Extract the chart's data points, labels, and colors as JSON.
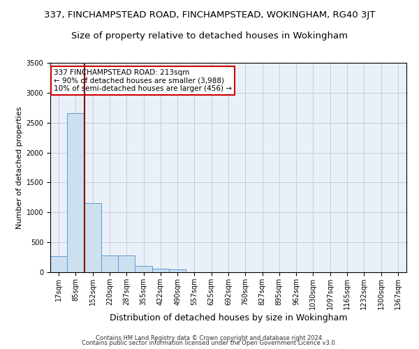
{
  "title1": "337, FINCHAMPSTEAD ROAD, FINCHAMPSTEAD, WOKINGHAM, RG40 3JT",
  "title2": "Size of property relative to detached houses in Wokingham",
  "xlabel": "Distribution of detached houses by size in Wokingham",
  "ylabel": "Number of detached properties",
  "footer1": "Contains HM Land Registry data © Crown copyright and database right 2024.",
  "footer2": "Contains public sector information licensed under the Open Government Licence v3.0.",
  "annotation_line1": "337 FINCHAMPSTEAD ROAD: 213sqm",
  "annotation_line2": "← 90% of detached houses are smaller (3,988)",
  "annotation_line3": "10% of semi-detached houses are larger (456) →",
  "bar_color": "#cce0f0",
  "bar_edge_color": "#5b9bd5",
  "marker_color": "#8b0000",
  "background_color": "#eaf0f8",
  "categories": [
    "17sqm",
    "85sqm",
    "152sqm",
    "220sqm",
    "287sqm",
    "355sqm",
    "422sqm",
    "490sqm",
    "557sqm",
    "625sqm",
    "692sqm",
    "760sqm",
    "827sqm",
    "895sqm",
    "962sqm",
    "1030sqm",
    "1097sqm",
    "1165sqm",
    "1232sqm",
    "1300sqm",
    "1367sqm"
  ],
  "values": [
    270,
    2660,
    1150,
    285,
    280,
    100,
    60,
    45,
    0,
    0,
    0,
    0,
    0,
    0,
    0,
    0,
    0,
    0,
    0,
    0,
    0
  ],
  "ylim": [
    0,
    3500
  ],
  "yticks": [
    0,
    500,
    1000,
    1500,
    2000,
    2500,
    3000,
    3500
  ],
  "marker_bar_index": 2,
  "grid_color": "#c0c8d8",
  "title1_fontsize": 9.5,
  "title2_fontsize": 9.5,
  "xlabel_fontsize": 9,
  "ylabel_fontsize": 8,
  "tick_fontsize": 7,
  "annotation_fontsize": 7.5,
  "annotation_box_color": "white",
  "annotation_border_color": "#cc0000",
  "footer_fontsize": 6
}
